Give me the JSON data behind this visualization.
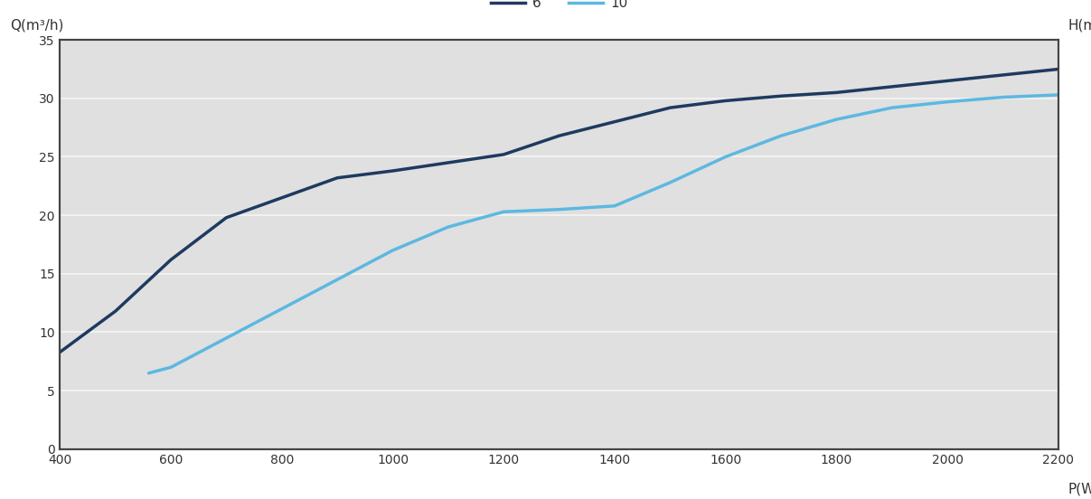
{
  "xlabel": "P(W)",
  "ylabel_left": "Q(m³/h)",
  "ylabel_right": "H(m)",
  "xlim": [
    400,
    2200
  ],
  "ylim": [
    0,
    35
  ],
  "xticks": [
    400,
    600,
    800,
    1000,
    1200,
    1400,
    1600,
    1800,
    2000,
    2200
  ],
  "yticks": [
    0,
    5,
    10,
    15,
    20,
    25,
    30,
    35
  ],
  "series": [
    {
      "label": "6",
      "color": "#1e3a5f",
      "linewidth": 2.5,
      "x": [
        400,
        500,
        600,
        700,
        800,
        900,
        1000,
        1100,
        1200,
        1300,
        1400,
        1500,
        1600,
        1700,
        1800,
        1900,
        2000,
        2100,
        2200
      ],
      "y": [
        8.3,
        11.8,
        16.2,
        19.8,
        21.5,
        23.2,
        23.8,
        24.5,
        25.2,
        26.8,
        28.0,
        29.2,
        29.8,
        30.2,
        30.5,
        31.0,
        31.5,
        32.0,
        32.5
      ]
    },
    {
      "label": "10",
      "color": "#5db8e0",
      "linewidth": 2.5,
      "x": [
        560,
        600,
        700,
        800,
        900,
        1000,
        1100,
        1200,
        1300,
        1400,
        1500,
        1600,
        1700,
        1800,
        1900,
        2000,
        2100,
        2200
      ],
      "y": [
        6.5,
        7.0,
        9.5,
        12.0,
        14.5,
        17.0,
        19.0,
        20.3,
        20.5,
        20.8,
        22.8,
        25.0,
        26.8,
        28.2,
        29.2,
        29.7,
        30.1,
        30.3
      ]
    }
  ],
  "background_color": "#ffffff",
  "plot_bg_color": "#e0e0e0",
  "grid_color": "#f5f5f5",
  "border_color": "#444444",
  "legend_line_colors": [
    "#1e3a5f",
    "#5db8e0"
  ],
  "legend_labels": [
    "6",
    "10"
  ]
}
